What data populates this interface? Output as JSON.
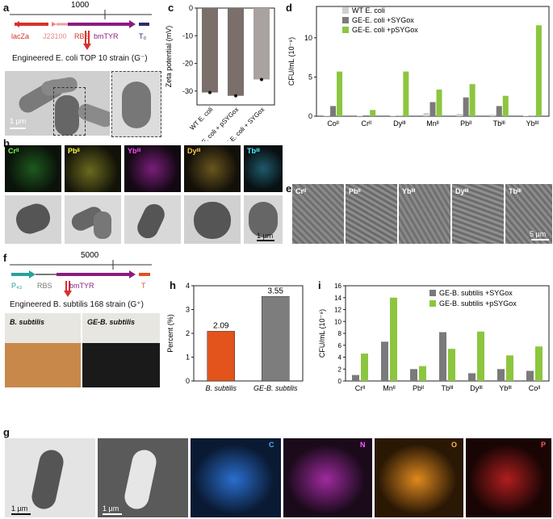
{
  "panels": {
    "a": {
      "letter": "a",
      "ruler_value": "1000",
      "genes": [
        "lacZa",
        "J23100",
        "RBS",
        "bmTYR",
        "T₀"
      ],
      "strain": "Engineered E. coli TOP 10 strain (G⁻)",
      "scale": "1 µm"
    },
    "b": {
      "letter": "b",
      "elements": [
        "Crᴵᴵ",
        "Pbᴵᴵ",
        "Ybᴵᴵᴵ",
        "Dyᴵᴵᴵ",
        "Tbᴵᴵᴵ"
      ],
      "scale": "1 µm"
    },
    "c": {
      "letter": "c"
    },
    "d": {
      "letter": "d"
    },
    "e": {
      "letter": "e",
      "elements": [
        "Crᴵᴵ",
        "Pbᴵᴵ",
        "Ybᴵᴵᴵ",
        "Dyᴵᴵᴵ",
        "Tbᴵᴵᴵ"
      ],
      "scale": "5 µm"
    },
    "f": {
      "letter": "f",
      "ruler_value": "5000",
      "genes": [
        "P₄₃",
        "RBS",
        "bmTYR",
        "T"
      ],
      "strain": "Engineered B. subtilis 168 strain (G⁺)",
      "flask_left": "B. subtilis",
      "flask_right": "GE-B. subtilis"
    },
    "g": {
      "letter": "g",
      "elements": [
        "C",
        "N",
        "O",
        "P"
      ],
      "scale1": "1 µm",
      "scale2": "1 µm"
    },
    "h": {
      "letter": "h"
    },
    "i": {
      "letter": "i"
    }
  },
  "chart_data": [
    {
      "id": "c",
      "type": "bar",
      "ylabel": "Zeta potential (mV)",
      "ylim": [
        -35,
        0
      ],
      "yticks": [
        0,
        -10,
        -20,
        -30
      ],
      "categories": [
        "WT E. coli",
        "GE-E. coli + pSYGox",
        "GE-E. coli + SYGox"
      ],
      "values": [
        -30.5,
        -31.7,
        -25.8
      ],
      "colors": [
        "#7b6f6b",
        "#7b6f6b",
        "#a9a2a0"
      ]
    },
    {
      "id": "d",
      "type": "bar",
      "ylabel": "CFU/mL (10⁻⁹)",
      "ylim": [
        0,
        14
      ],
      "yticks": [
        0,
        5,
        10
      ],
      "categories": [
        "Coᴵᴵ",
        "Crᴵᴵ",
        "Dyᴵᴵᴵ",
        "Mnᴵᴵ",
        "Pbᴵᴵ",
        "Tbᴵᴵᴵ",
        "Ybᴵᴵᴵ"
      ],
      "series": [
        {
          "name": "WT E. coli",
          "color": "#cfcfcf",
          "values": [
            0.05,
            0.05,
            0.05,
            0.4,
            0.3,
            0.2,
            0.05
          ]
        },
        {
          "name": "GE-E. coli +SYGox",
          "color": "#7a7a7a",
          "values": [
            1.3,
            0.1,
            0.05,
            1.8,
            2.4,
            1.3,
            0.05
          ]
        },
        {
          "name": "GE-E. coli +pSYGox",
          "color": "#8cc63f",
          "values": [
            5.7,
            0.8,
            5.7,
            3.4,
            4.1,
            2.6,
            11.6
          ]
        }
      ],
      "significance": [
        "****",
        "****",
        "*",
        "*",
        "****",
        "****",
        "**",
        "****",
        "*",
        "****",
        "****"
      ]
    },
    {
      "id": "h",
      "type": "bar",
      "ylabel": "Percent (%)",
      "ylim": [
        0,
        4
      ],
      "yticks": [
        0,
        1,
        2,
        3,
        4
      ],
      "categories": [
        "B. subtilis",
        "GE-B. subtilis"
      ],
      "values": [
        2.09,
        3.55
      ],
      "value_labels": [
        "2.09",
        "3.55"
      ],
      "colors": [
        "#e2541b",
        "#7d7d7d"
      ]
    },
    {
      "id": "i",
      "type": "bar",
      "ylabel": "CFU/mL (10⁻⁹)",
      "ylim": [
        0,
        16
      ],
      "yticks": [
        0,
        2,
        4,
        6,
        8,
        10,
        12,
        14,
        16
      ],
      "categories": [
        "Crᴵᴵ",
        "Mnᴵᴵ",
        "Pbᴵᴵ",
        "Tbᴵᴵᴵ",
        "Dyᴵᴵᴵ",
        "Ybᴵᴵᴵ",
        "Coᴵᴵ"
      ],
      "series": [
        {
          "name": "GE-B. subtilis +SYGox",
          "color": "#7a7a7a",
          "values": [
            1.0,
            6.6,
            2.0,
            8.2,
            1.3,
            2.0,
            1.7
          ]
        },
        {
          "name": "GE-B. subtilis +pSYGox",
          "color": "#8cc63f",
          "values": [
            4.6,
            14.0,
            2.5,
            5.4,
            8.3,
            4.3,
            5.8
          ]
        }
      ],
      "significance": [
        "****",
        "****",
        "",
        "**",
        "****",
        "***",
        "****"
      ]
    }
  ],
  "colors": {
    "red": "#d9302c",
    "magenta": "#8b1c7f",
    "teal": "#2aa198",
    "orange": "#e2541b",
    "green": "#8cc63f",
    "gray": "#7a7a7a"
  }
}
